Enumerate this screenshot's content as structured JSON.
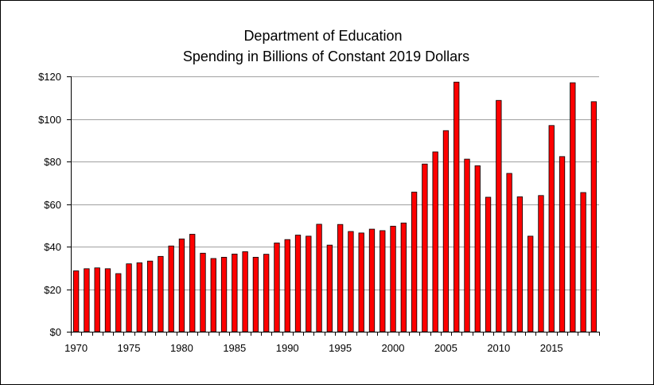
{
  "chart_data": {
    "type": "bar",
    "title": "Department of Education",
    "subtitle": "Spending in Billions of Constant 2019 Dollars",
    "xlabel": "",
    "ylabel": "",
    "ylim": [
      0,
      120
    ],
    "yticks": [
      "$0",
      "$20",
      "$40",
      "$60",
      "$80",
      "$100",
      "$120"
    ],
    "ytick_values": [
      0,
      20,
      40,
      60,
      80,
      100,
      120
    ],
    "xtick_labels": [
      "1970",
      "1975",
      "1980",
      "1985",
      "1990",
      "1995",
      "2000",
      "2005",
      "2010",
      "2015"
    ],
    "xtick_years": [
      1970,
      1975,
      1980,
      1985,
      1990,
      1995,
      2000,
      2005,
      2010,
      2015
    ],
    "grid": true,
    "legend": "none",
    "bar_color": "#ff0000",
    "years": [
      1970,
      1971,
      1972,
      1973,
      1974,
      1975,
      1976,
      1977,
      1978,
      1979,
      1980,
      1981,
      1982,
      1983,
      1984,
      1985,
      1986,
      1987,
      1988,
      1989,
      1990,
      1991,
      1992,
      1993,
      1994,
      1995,
      1996,
      1997,
      1998,
      1999,
      2000,
      2001,
      2002,
      2003,
      2004,
      2005,
      2006,
      2007,
      2008,
      2009,
      2010,
      2011,
      2012,
      2013,
      2014,
      2015,
      2016,
      2017,
      2018,
      2019
    ],
    "values": [
      28.6,
      29.6,
      30.0,
      29.6,
      27.3,
      31.9,
      32.4,
      33.2,
      35.4,
      40.3,
      43.6,
      45.8,
      36.9,
      34.4,
      35.0,
      36.5,
      37.6,
      35.0,
      36.4,
      41.7,
      43.3,
      45.4,
      44.9,
      50.5,
      40.7,
      50.4,
      47.1,
      46.4,
      48.2,
      47.5,
      49.6,
      51.1,
      65.6,
      78.8,
      84.5,
      94.5,
      117.3,
      81.1,
      78.0,
      63.2,
      108.7,
      74.4,
      63.4,
      44.9,
      64.0,
      96.9,
      82.3,
      117.0,
      65.4,
      108.1
    ]
  }
}
